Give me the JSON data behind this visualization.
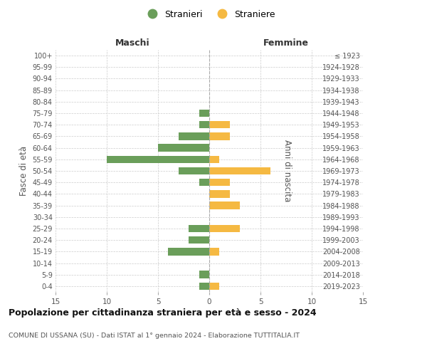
{
  "age_groups": [
    "0-4",
    "5-9",
    "10-14",
    "15-19",
    "20-24",
    "25-29",
    "30-34",
    "35-39",
    "40-44",
    "45-49",
    "50-54",
    "55-59",
    "60-64",
    "65-69",
    "70-74",
    "75-79",
    "80-84",
    "85-89",
    "90-94",
    "95-99",
    "100+"
  ],
  "birth_years": [
    "2019-2023",
    "2014-2018",
    "2009-2013",
    "2004-2008",
    "1999-2003",
    "1994-1998",
    "1989-1993",
    "1984-1988",
    "1979-1983",
    "1974-1978",
    "1969-1973",
    "1964-1968",
    "1959-1963",
    "1954-1958",
    "1949-1953",
    "1944-1948",
    "1939-1943",
    "1934-1938",
    "1929-1933",
    "1924-1928",
    "≤ 1923"
  ],
  "males": [
    1,
    1,
    0,
    4,
    2,
    2,
    0,
    0,
    0,
    1,
    3,
    10,
    5,
    3,
    1,
    1,
    0,
    0,
    0,
    0,
    0
  ],
  "females": [
    1,
    0,
    0,
    1,
    0,
    3,
    0,
    3,
    2,
    2,
    6,
    1,
    0,
    2,
    2,
    0,
    0,
    0,
    0,
    0,
    0
  ],
  "color_males": "#6a9e5a",
  "color_females": "#f5b942",
  "title": "Popolazione per cittadinanza straniera per età e sesso - 2024",
  "subtitle": "COMUNE DI USSANA (SU) - Dati ISTAT al 1° gennaio 2024 - Elaborazione TUTTITALIA.IT",
  "xlabel_left": "Maschi",
  "xlabel_right": "Femmine",
  "ylabel_left": "Fasce di età",
  "ylabel_right": "Anni di nascita",
  "legend_males": "Stranieri",
  "legend_females": "Straniere",
  "xlim": 15,
  "background_color": "#ffffff",
  "grid_color": "#cccccc"
}
